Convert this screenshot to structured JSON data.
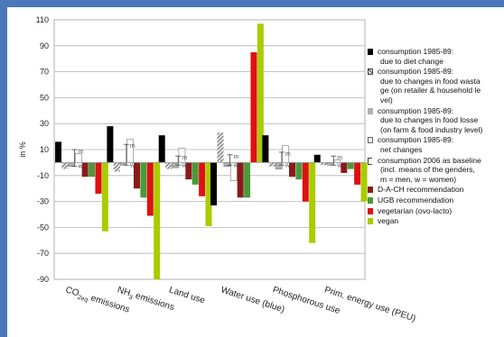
{
  "chart_data": {
    "type": "bar",
    "ylabel": "in %",
    "ylim": [
      -90,
      110
    ],
    "yticks": [
      110,
      90,
      70,
      50,
      30,
      10,
      -10,
      -30,
      -50,
      -70,
      -90
    ],
    "grid": "horizontal",
    "legend_position": "right",
    "categories": [
      {
        "text": "CO",
        "sub": "2eq",
        "rest": " emissions"
      },
      {
        "text": "NH",
        "sub": "3",
        "rest": " emissions"
      },
      {
        "text": "Land use",
        "sub": "",
        "rest": ""
      },
      {
        "text": "Water use (blue)",
        "sub": "",
        "rest": ""
      },
      {
        "text": "Phosphorous use",
        "sub": "",
        "rest": ""
      },
      {
        "text": "Prim. energy use (PEU)",
        "sub": "",
        "rest": ""
      }
    ],
    "series": [
      {
        "name_lines": [
          "consumption 1985-89:",
          "due to diet change"
        ],
        "color": "#000000",
        "values": [
          16,
          28,
          21,
          -33,
          21,
          6
        ]
      },
      {
        "name_lines": [
          "consumption 1985-89:",
          "due to changes in food wasta",
          "ge (on retailer & household le",
          "vel)"
        ],
        "color": "#666666",
        "pattern": "diag",
        "values": [
          -5,
          -7,
          -5,
          23,
          -3,
          -2
        ]
      },
      {
        "name_lines": [
          "consumption 1985-89:",
          "due to changes in food losse",
          "(on farm & food industry level)"
        ],
        "color": "#b0b0b0",
        "values": [
          -3,
          -2,
          -4,
          -3,
          -5,
          -2
        ]
      },
      {
        "name_lines": [
          "consumption 1985-89:",
          "net changes"
        ],
        "color": "#ffffff",
        "values": [
          7,
          18,
          11,
          -14,
          13,
          2
        ]
      },
      {
        "name_lines": [
          "consumption 2006 as baseline",
          "(incl. means of the genders,",
          "m = men, w = women)"
        ],
        "marker": "range",
        "baseline_ranges": [
          [
            -3,
            10
          ],
          [
            -2,
            14
          ],
          [
            -2,
            5
          ],
          [
            -2,
            6
          ],
          [
            -2,
            8
          ],
          [
            -2,
            5
          ]
        ]
      },
      {
        "name_lines": [
          "D-A-CH recommendation"
        ],
        "color": "#8b1a1a",
        "values": [
          -11,
          -20,
          -13,
          -27,
          -11,
          -8
        ]
      },
      {
        "name_lines": [
          "UGB recommendation"
        ],
        "color": "#4a9a3a",
        "values": [
          -11,
          -27,
          -17,
          -27,
          -13,
          -5
        ]
      },
      {
        "name_lines": [
          "vegetarian (ovo-lacto)"
        ],
        "color": "#dd1111",
        "values": [
          -24,
          -41,
          -26,
          85,
          -30,
          -17
        ]
      },
      {
        "name_lines": [
          "vegan"
        ],
        "color": "#aacc00",
        "values": [
          -53,
          -90,
          -49,
          107,
          -62,
          -30
        ]
      }
    ],
    "point_labels": [
      "m",
      "w"
    ]
  }
}
